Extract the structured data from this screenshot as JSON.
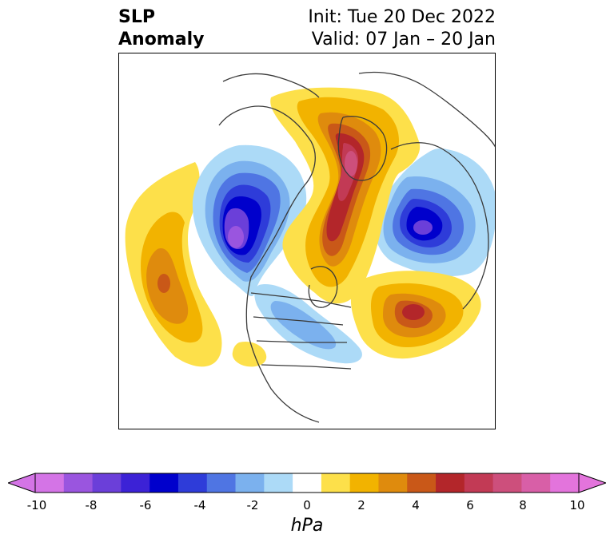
{
  "header": {
    "title_line1": "SLP",
    "title_line2": "Anomaly",
    "init_text": "Init: Tue 20 Dec 2022",
    "valid_text": "Valid: 07 Jan – 20 Jan"
  },
  "colorbar": {
    "label": "hPa",
    "ticks": [
      "-10",
      "-8",
      "-6",
      "-4",
      "-2",
      "0",
      "2",
      "4",
      "6",
      "8",
      "10"
    ],
    "colors": [
      "#d474e6",
      "#9a55df",
      "#6b3fd9",
      "#3c22d6",
      "#0000cc",
      "#2e3cd9",
      "#4f75e3",
      "#7bb1ee",
      "#acdaf7",
      "#ffffff",
      "#fde04a",
      "#f2b300",
      "#df8b0d",
      "#c95818",
      "#b3262a",
      "#c23a55",
      "#cd4f7c",
      "#d85fa7",
      "#e374dc"
    ],
    "extend_min_color": "#d474e6",
    "extend_max_color": "#e374dc"
  }
}
